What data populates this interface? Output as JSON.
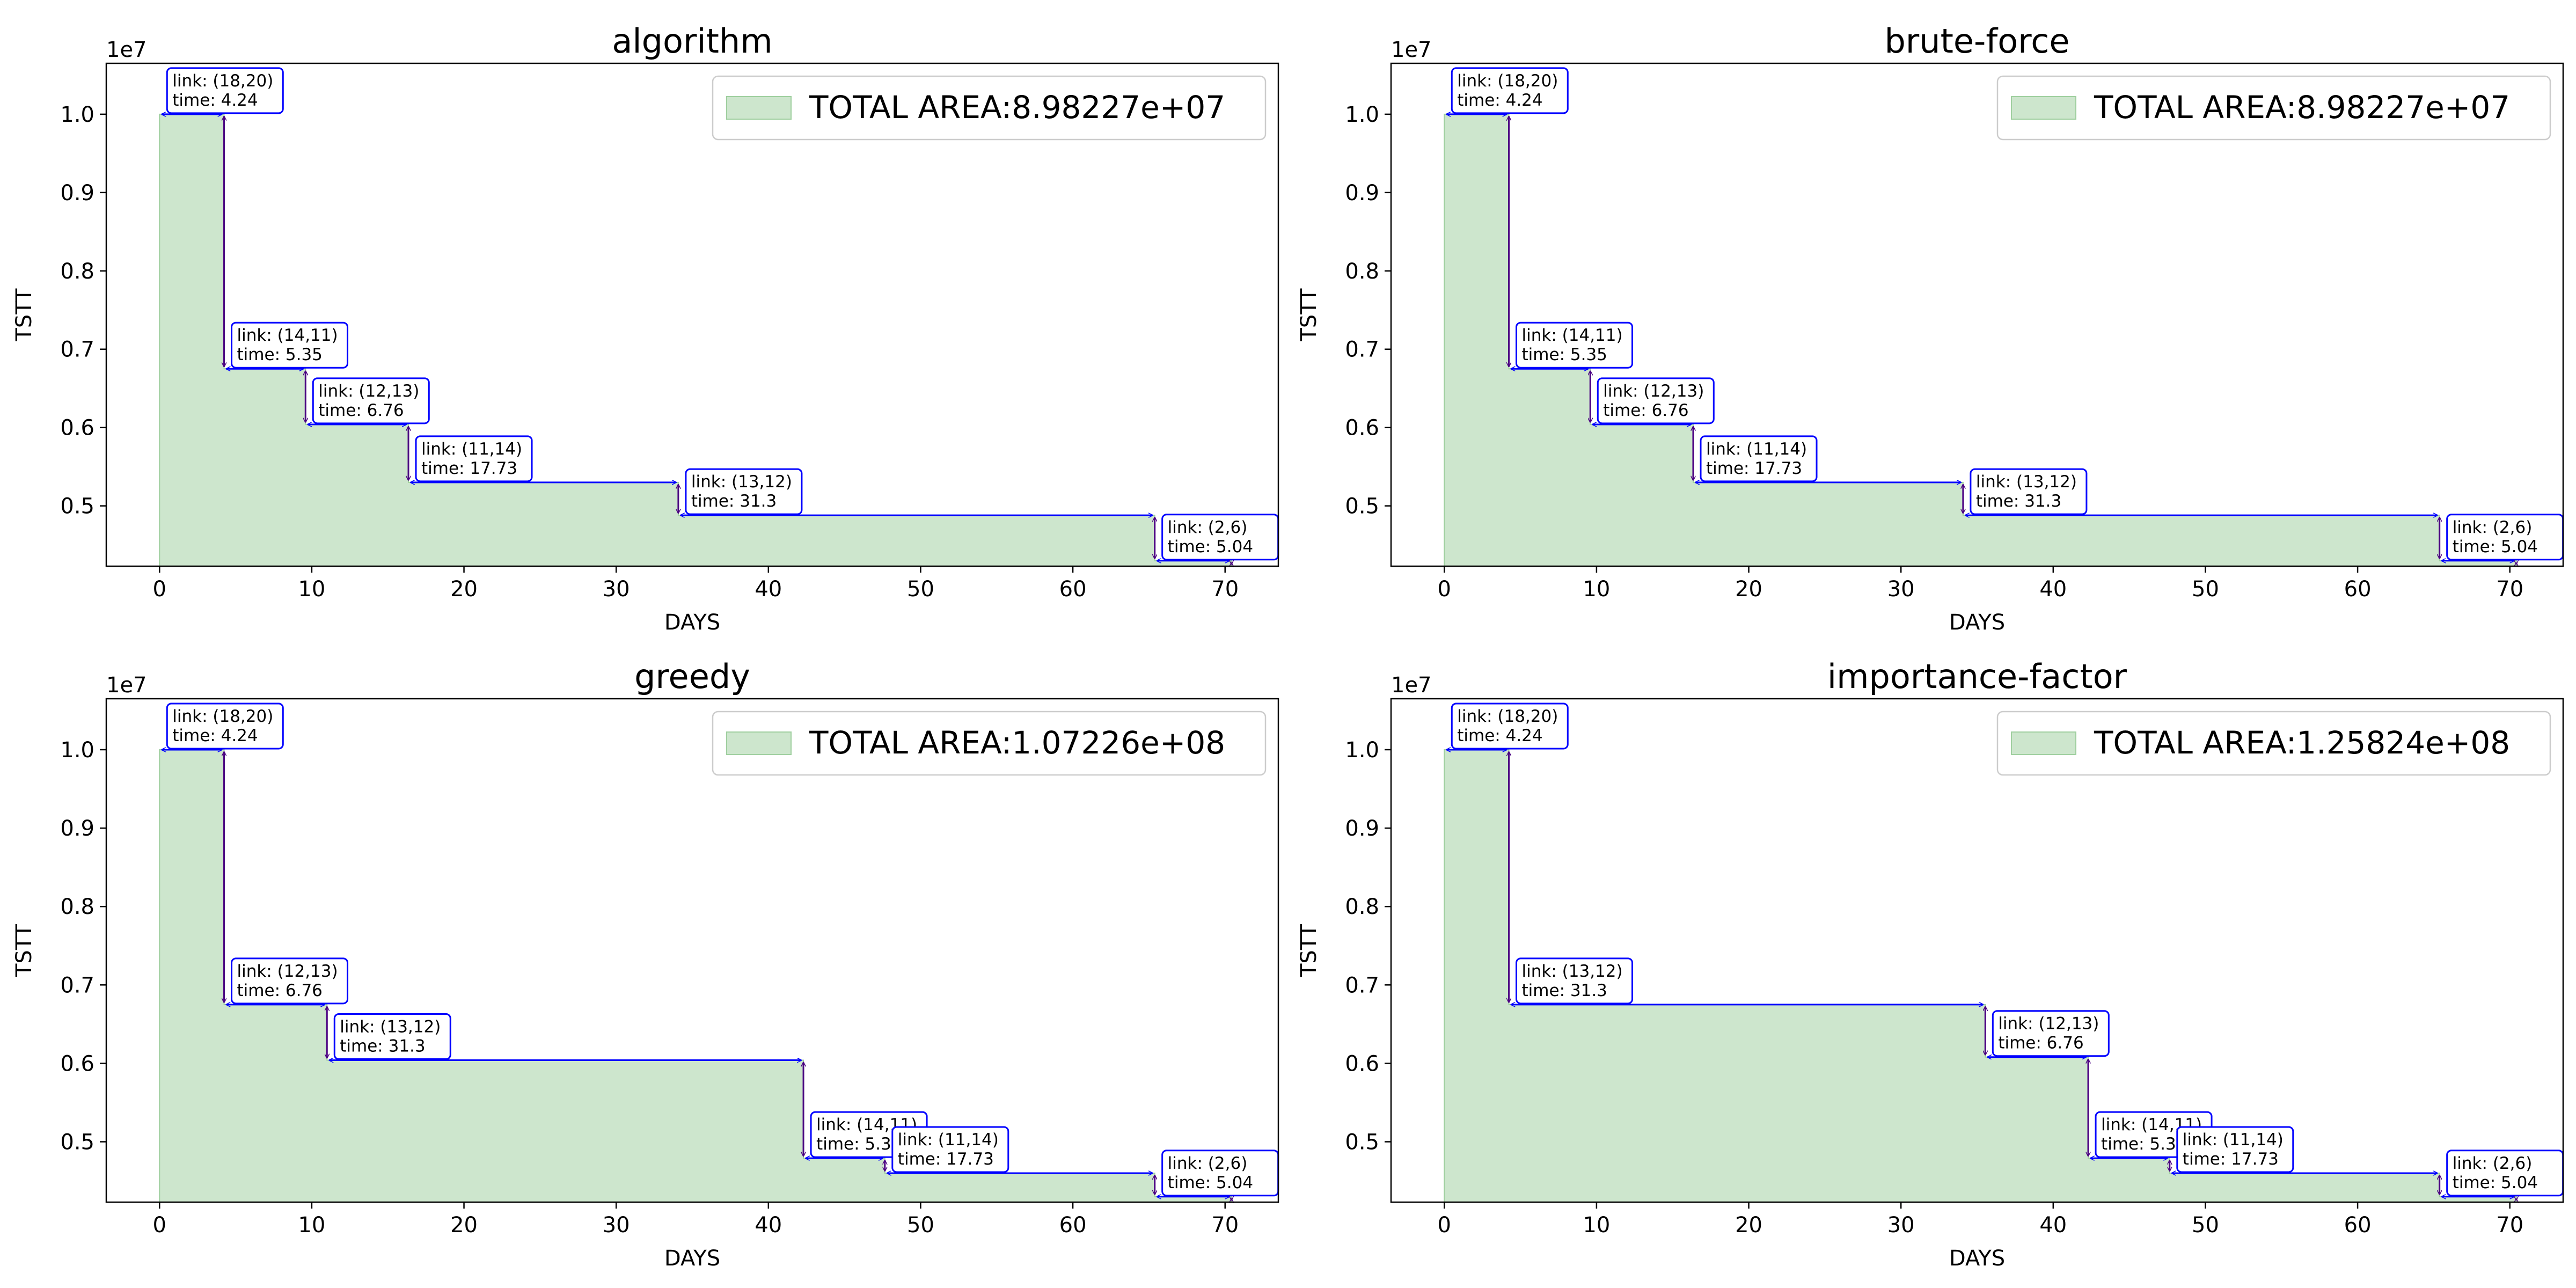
{
  "chart_data": [
    {
      "type": "area",
      "title": "algorithm",
      "xlabel": "DAYS",
      "ylabel": "TSTT",
      "y_offset_label": "1e7",
      "xlim": [
        -3.5,
        73.5
      ],
      "ylim": [
        4230000.0,
        10650000.0
      ],
      "xticks": [
        0,
        10,
        20,
        30,
        40,
        50,
        60,
        70
      ],
      "yticks": [
        0.5,
        0.6,
        0.7,
        0.8,
        0.9,
        1.0
      ],
      "legend": "TOTAL AREA:8.98227e+07",
      "legend_loc": "upper right",
      "steps": [
        {
          "link": "(18,20)",
          "time": "4.24",
          "start": 0,
          "end": 4.24,
          "level": 10000000
        },
        {
          "link": "(14,11)",
          "time": "5.35",
          "start": 4.24,
          "end": 9.59,
          "level": 6750000
        },
        {
          "link": "(12,13)",
          "time": "6.76",
          "start": 9.59,
          "end": 16.35,
          "level": 6040000
        },
        {
          "link": "(11,14)",
          "time": "17.73",
          "start": 16.35,
          "end": 34.08,
          "level": 5300000
        },
        {
          "link": "(13,12)",
          "time": "31.3",
          "start": 34.08,
          "end": 65.38,
          "level": 4880000
        },
        {
          "link": "(2,6)",
          "time": "5.04",
          "start": 65.38,
          "end": 70.42,
          "level": 4300000
        }
      ],
      "final_level": 4230000
    },
    {
      "type": "area",
      "title": "brute-force",
      "xlabel": "DAYS",
      "ylabel": "TSTT",
      "y_offset_label": "1e7",
      "xlim": [
        -3.5,
        73.5
      ],
      "ylim": [
        4230000.0,
        10650000.0
      ],
      "xticks": [
        0,
        10,
        20,
        30,
        40,
        50,
        60,
        70
      ],
      "yticks": [
        0.5,
        0.6,
        0.7,
        0.8,
        0.9,
        1.0
      ],
      "legend": "TOTAL AREA:8.98227e+07",
      "legend_loc": "upper right",
      "steps": [
        {
          "link": "(18,20)",
          "time": "4.24",
          "start": 0,
          "end": 4.24,
          "level": 10000000
        },
        {
          "link": "(14,11)",
          "time": "5.35",
          "start": 4.24,
          "end": 9.59,
          "level": 6750000
        },
        {
          "link": "(12,13)",
          "time": "6.76",
          "start": 9.59,
          "end": 16.35,
          "level": 6040000
        },
        {
          "link": "(11,14)",
          "time": "17.73",
          "start": 16.35,
          "end": 34.08,
          "level": 5300000
        },
        {
          "link": "(13,12)",
          "time": "31.3",
          "start": 34.08,
          "end": 65.38,
          "level": 4880000
        },
        {
          "link": "(2,6)",
          "time": "5.04",
          "start": 65.38,
          "end": 70.42,
          "level": 4300000
        }
      ],
      "final_level": 4230000
    },
    {
      "type": "area",
      "title": "greedy",
      "xlabel": "DAYS",
      "ylabel": "TSTT",
      "y_offset_label": "1e7",
      "xlim": [
        -3.5,
        73.5
      ],
      "ylim": [
        4230000.0,
        10650000.0
      ],
      "xticks": [
        0,
        10,
        20,
        30,
        40,
        50,
        60,
        70
      ],
      "yticks": [
        0.5,
        0.6,
        0.7,
        0.8,
        0.9,
        1.0
      ],
      "legend": "TOTAL AREA:1.07226e+08",
      "legend_loc": "upper right",
      "steps": [
        {
          "link": "(18,20)",
          "time": "4.24",
          "start": 0,
          "end": 4.24,
          "level": 10000000
        },
        {
          "link": "(12,13)",
          "time": "6.76",
          "start": 4.24,
          "end": 11.0,
          "level": 6750000
        },
        {
          "link": "(13,12)",
          "time": "31.3",
          "start": 11.0,
          "end": 42.3,
          "level": 6040000
        },
        {
          "link": "(14,11)",
          "time": "5.35",
          "start": 42.3,
          "end": 47.65,
          "level": 4790000
        },
        {
          "link": "(11,14)",
          "time": "17.73",
          "start": 47.65,
          "end": 65.38,
          "level": 4600000
        },
        {
          "link": "(2,6)",
          "time": "5.04",
          "start": 65.38,
          "end": 70.42,
          "level": 4300000
        }
      ],
      "final_level": 4230000
    },
    {
      "type": "area",
      "title": "importance-factor",
      "xlabel": "DAYS",
      "ylabel": "TSTT",
      "y_offset_label": "1e7",
      "xlim": [
        -3.5,
        73.5
      ],
      "ylim": [
        4230000.0,
        10650000.0
      ],
      "xticks": [
        0,
        10,
        20,
        30,
        40,
        50,
        60,
        70
      ],
      "yticks": [
        0.5,
        0.6,
        0.7,
        0.8,
        0.9,
        1.0
      ],
      "legend": "TOTAL AREA:1.25824e+08",
      "legend_loc": "upper right",
      "steps": [
        {
          "link": "(18,20)",
          "time": "4.24",
          "start": 0,
          "end": 4.24,
          "level": 10000000
        },
        {
          "link": "(13,12)",
          "time": "31.3",
          "start": 4.24,
          "end": 35.54,
          "level": 6750000
        },
        {
          "link": "(12,13)",
          "time": "6.76",
          "start": 35.54,
          "end": 42.3,
          "level": 6080000
        },
        {
          "link": "(14,11)",
          "time": "5.35",
          "start": 42.3,
          "end": 47.65,
          "level": 4790000
        },
        {
          "link": "(11,14)",
          "time": "17.73",
          "start": 47.65,
          "end": 65.38,
          "level": 4600000
        },
        {
          "link": "(2,6)",
          "time": "5.04",
          "start": 65.38,
          "end": 70.42,
          "level": 4300000
        }
      ],
      "final_level": 4230000
    }
  ],
  "colors": {
    "fill": "#cde6cd",
    "fill_edge": "#9fcf9f",
    "arrow_h": "#0000ff",
    "arrow_v": "#4b0082",
    "annotation_border": "#0000ff",
    "axis": "#000000"
  }
}
